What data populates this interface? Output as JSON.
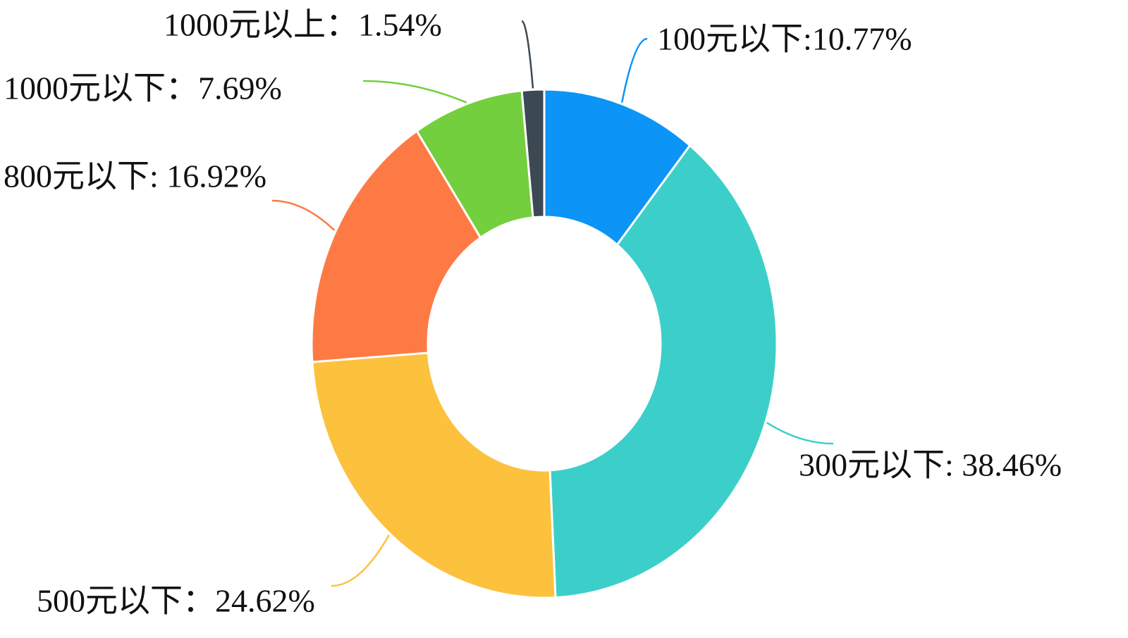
{
  "chart_data": {
    "type": "donut",
    "categories": [
      "100元以下:10.77%",
      "300元以下: 38.46%",
      "500元以下：24.62%",
      "800元以下: 16.92%",
      "1000元以下：7.69%",
      "1000元以上：1.54%"
    ],
    "values": [
      10.77,
      38.46,
      24.62,
      16.92,
      7.69,
      1.54
    ],
    "colors": [
      "#0c94f6",
      "#3ccfca",
      "#fcc23d",
      "#fe7a44",
      "#73cf3d",
      "#3c4852"
    ]
  }
}
